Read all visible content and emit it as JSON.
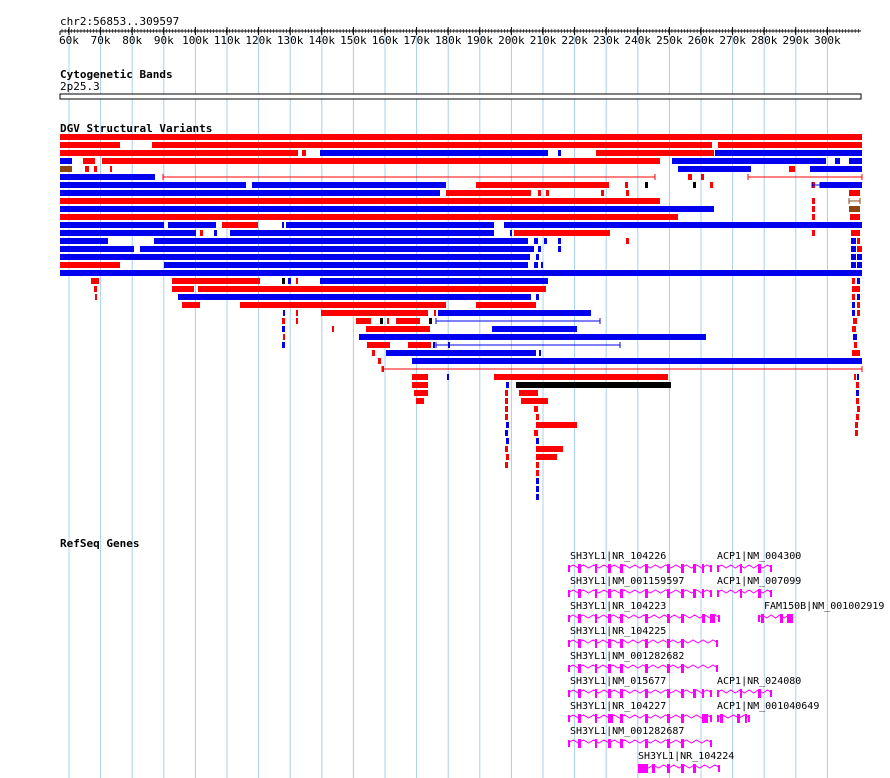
{
  "ruler": {
    "region": "chr2:56853..309597",
    "ticks": [
      "60k",
      "70k",
      "80k",
      "90k",
      "100k",
      "110k",
      "120k",
      "130k",
      "140k",
      "150k",
      "160k",
      "170k",
      "180k",
      "190k",
      "200k",
      "210k",
      "220k",
      "230k",
      "240k",
      "250k",
      "260k",
      "270k",
      "280k",
      "290k",
      "300k"
    ]
  },
  "cytoband": {
    "title": "Cytogenetic Bands",
    "band": "2p25.3"
  },
  "dgv": {
    "title": "DGV Structural Variants",
    "colors": {
      "gain": "#ff0000",
      "loss": "#0000ee",
      "both": "#8b4513",
      "other": "#000000"
    }
  },
  "refseq": {
    "title": "RefSeq Genes",
    "color": "#ff00ff",
    "labels": [
      "SH3YL1|NR_104226",
      "ACP1|NM_004300",
      "SH3YL1|NM_001159597",
      "ACP1|NM_007099",
      "SH3YL1|NR_104223",
      "FAM150B|NM_001002919",
      "SH3YL1|NR_104225",
      "SH3YL1|NM_001282682",
      "SH3YL1|NM_015677",
      "ACP1|NR_024080",
      "SH3YL1|NR_104227",
      "ACP1|NM_001040649",
      "SH3YL1|NM_001282687",
      "SH3YL1|NR_104224"
    ]
  }
}
